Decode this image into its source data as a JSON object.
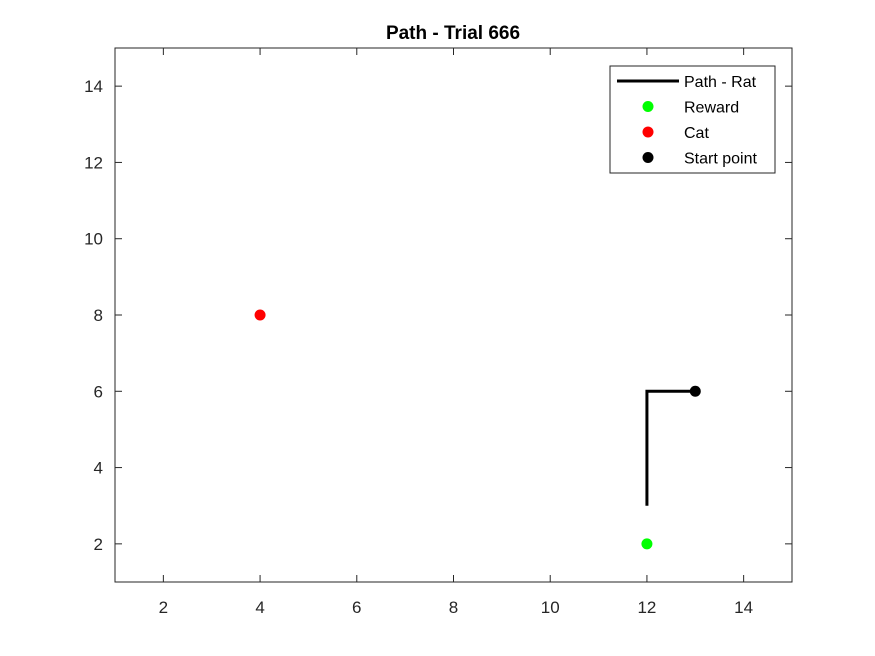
{
  "chart_data": {
    "type": "scatter",
    "title": "Path - Trial 666",
    "xlabel": "",
    "ylabel": "",
    "xlim": [
      1,
      15
    ],
    "ylim": [
      1,
      15
    ],
    "xticks": [
      2,
      4,
      6,
      8,
      10,
      12,
      14
    ],
    "yticks": [
      2,
      4,
      6,
      8,
      10,
      12,
      14
    ],
    "grid": false,
    "legend_position": "top-right",
    "series": [
      {
        "name": "Path - Rat",
        "kind": "line",
        "color": "#000000",
        "points": [
          [
            12,
            3
          ],
          [
            12,
            6
          ],
          [
            13,
            6
          ]
        ]
      },
      {
        "name": "Reward",
        "kind": "marker",
        "color": "#00ff00",
        "points": [
          [
            12,
            2
          ]
        ]
      },
      {
        "name": "Cat",
        "kind": "marker",
        "color": "#ff0000",
        "points": [
          [
            4,
            8
          ]
        ]
      },
      {
        "name": "Start point",
        "kind": "marker",
        "color": "#000000",
        "points": [
          [
            13,
            6
          ]
        ]
      }
    ]
  }
}
